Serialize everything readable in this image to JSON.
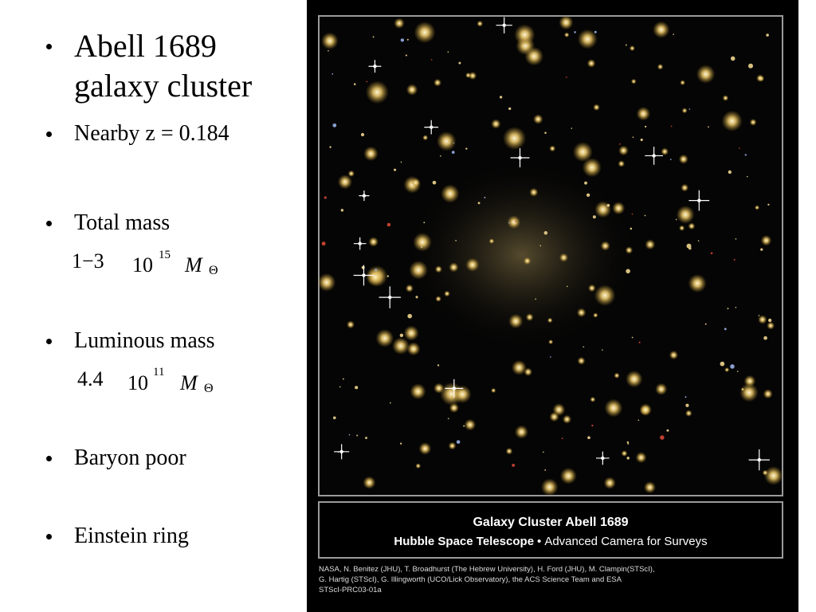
{
  "bullets": [
    {
      "text": "Abell 1689 galaxy cluster"
    },
    {
      "text": "Nearby z = 0.184"
    },
    {
      "text": "Total mass",
      "formula": {
        "coefficient": "1−3",
        "base": "10",
        "exponent": "15",
        "symbol": "M",
        "subscript": "Θ"
      }
    },
    {
      "text": "Luminous mass",
      "formula": {
        "coefficient": "4.4",
        "base": "10",
        "exponent": "11",
        "symbol": "M",
        "subscript": "Θ"
      }
    },
    {
      "text": "Baryon poor"
    },
    {
      "text": "Einstein ring"
    }
  ],
  "image": {
    "caption_title": "Galaxy Cluster Abell 1689",
    "caption_telescope": "Hubble Space Telescope",
    "caption_instrument": "Advanced Camera for Surveys",
    "credits": [
      "NASA, N. Benitez (JHU), T. Broadhurst (The Hebrew University), H. Ford (JHU), M. Clampin(STScI),",
      "G. Hartig (STScI), G. Illingworth (UCO/Lick Observatory), the ACS Science Team and ESA",
      "STScI-PRC03-01a"
    ]
  }
}
